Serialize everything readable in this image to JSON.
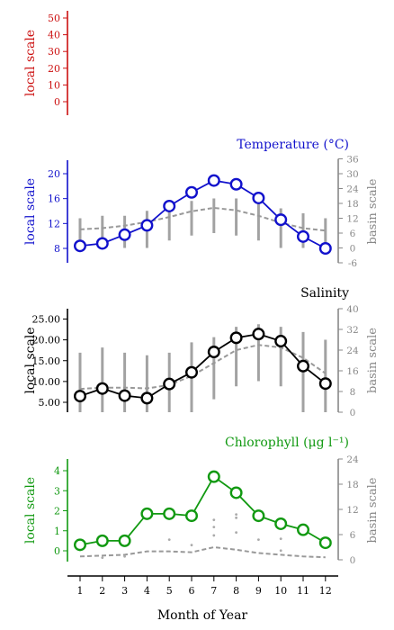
{
  "chart_data": [
    {
      "type": "line",
      "local_axis": {
        "label": "local scale",
        "ticks": [
          "0",
          "10",
          "20",
          "30",
          "40",
          "50"
        ],
        "ylim": [
          -3,
          55
        ],
        "color": "#cc1111"
      },
      "x": [
        1,
        2,
        3,
        4,
        5,
        6,
        7,
        8,
        9,
        10,
        11,
        12
      ],
      "series": []
    },
    {
      "type": "line",
      "title": "Temperature (°C)",
      "title_color": "#1111cc",
      "local_axis": {
        "label": "local scale",
        "ticks": [
          "8",
          "12",
          "16",
          "20"
        ],
        "ylim": [
          6.5,
          21.5
        ],
        "color": "#1111cc"
      },
      "basin_axis": {
        "label": "basin scale",
        "ticks": [
          "-6",
          "0",
          "6",
          "12",
          "18",
          "24",
          "30",
          "36"
        ],
        "ylim": [
          -6,
          36
        ],
        "color": "#888888"
      },
      "x": [
        1,
        2,
        3,
        4,
        5,
        6,
        7,
        8,
        9,
        10,
        11,
        12
      ],
      "series": [
        {
          "axis": "local",
          "style": "solid-circles",
          "color": "#1111cc",
          "values": [
            8.4,
            8.8,
            10.2,
            11.7,
            14.8,
            17.0,
            18.9,
            18.3,
            16.1,
            12.6,
            9.9,
            8.0
          ]
        },
        {
          "axis": "basin",
          "style": "dashed",
          "color": "#999999",
          "values": [
            7.5,
            8.0,
            9.0,
            10.5,
            12.5,
            14.8,
            16.2,
            15.2,
            13.0,
            10.2,
            8.0,
            7.0
          ]
        },
        {
          "axis": "basin",
          "style": "range-bars",
          "color": "#999999",
          "low": [
            0,
            0,
            0,
            0,
            3,
            5,
            6,
            5,
            3,
            0,
            0,
            0
          ],
          "high": [
            12,
            13,
            13,
            15,
            17,
            19,
            20,
            20,
            18,
            16,
            14,
            12
          ]
        }
      ]
    },
    {
      "type": "line",
      "title": "Salinity",
      "title_color": "#000000",
      "local_axis": {
        "label": "local scale",
        "ticks": [
          "5.00",
          "10.00",
          "15.00",
          "20.00",
          "25.00"
        ],
        "ylim": [
          2.5,
          27.5
        ],
        "color": "#000000"
      },
      "basin_axis": {
        "label": "basin scale",
        "ticks": [
          "0",
          "8",
          "16",
          "24",
          "32",
          "40"
        ],
        "ylim": [
          0,
          40
        ],
        "color": "#888888"
      },
      "x": [
        1,
        2,
        3,
        4,
        5,
        6,
        7,
        8,
        9,
        10,
        11,
        12
      ],
      "series": [
        {
          "axis": "local",
          "style": "solid-circles",
          "color": "#000000",
          "values": [
            6.5,
            8.3,
            6.6,
            6.0,
            9.4,
            12.2,
            17.1,
            20.5,
            21.4,
            19.7,
            13.7,
            9.5
          ]
        },
        {
          "axis": "basin",
          "style": "dashed",
          "color": "#999999",
          "values": [
            9.0,
            9.5,
            9.5,
            9.2,
            10.5,
            14.0,
            19.0,
            24.0,
            26.0,
            25.0,
            21.0,
            15.0
          ]
        },
        {
          "axis": "basin",
          "style": "range-bars",
          "color": "#999999",
          "low": [
            0,
            0,
            0,
            0,
            0,
            0,
            5,
            10,
            12,
            10,
            0,
            0
          ],
          "high": [
            23,
            25,
            23,
            22,
            23,
            27,
            29,
            33,
            34,
            33,
            31,
            28
          ]
        }
      ]
    },
    {
      "type": "line",
      "title": "Chlorophyll (μg l⁻¹)",
      "title_color": "#119911",
      "local_axis": {
        "label": "local scale",
        "ticks": [
          "0",
          "1",
          "2",
          "3",
          "4"
        ],
        "ylim": [
          -0.5,
          4.2
        ],
        "color": "#119911"
      },
      "basin_axis": {
        "label": "basin scale",
        "ticks": [
          "0",
          "6",
          "12",
          "18",
          "24"
        ],
        "ylim": [
          0,
          24
        ],
        "color": "#888888"
      },
      "x": [
        1,
        2,
        3,
        4,
        5,
        6,
        7,
        8,
        9,
        10,
        11,
        12
      ],
      "xlabel": "Month of Year",
      "x_ticks": [
        "1",
        "2",
        "3",
        "4",
        "5",
        "6",
        "7",
        "8",
        "9",
        "10",
        "11",
        "12"
      ],
      "series": [
        {
          "axis": "local",
          "style": "solid-circles",
          "color": "#119911",
          "values": [
            0.3,
            0.5,
            0.5,
            1.85,
            1.85,
            1.75,
            3.7,
            2.9,
            1.75,
            1.35,
            1.05,
            0.4
          ]
        },
        {
          "axis": "basin",
          "style": "dashed",
          "color": "#999999",
          "values": [
            0.8,
            1.0,
            1.2,
            2.0,
            2.0,
            1.8,
            3.0,
            2.4,
            1.6,
            1.2,
            0.8,
            0.6
          ]
        },
        {
          "axis": "basin",
          "style": "scatter-dots",
          "color": "#aaaaaa",
          "points": [
            [
              2,
              0.5
            ],
            [
              3,
              0.8
            ],
            [
              5,
              4.8
            ],
            [
              6,
              3.5
            ],
            [
              7,
              5.8
            ],
            [
              7,
              7.8
            ],
            [
              7,
              9.5
            ],
            [
              8,
              6.5
            ],
            [
              8,
              10.0
            ],
            [
              8,
              10.8
            ],
            [
              9,
              4.8
            ],
            [
              10,
              2.2
            ],
            [
              10,
              5.0
            ]
          ]
        }
      ]
    }
  ]
}
